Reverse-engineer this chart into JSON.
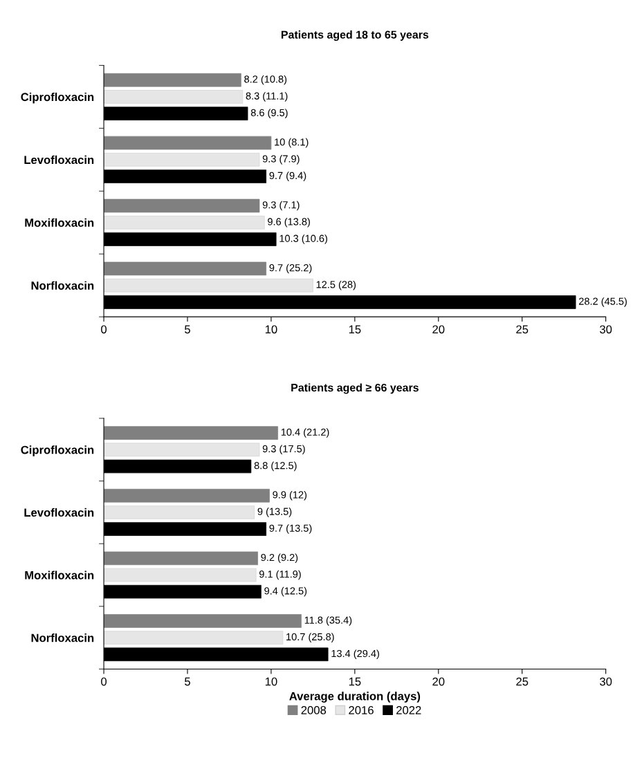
{
  "chart_data": [
    {
      "type": "bar",
      "orientation": "horizontal",
      "title": "Patients aged 18 to 65 years",
      "categories": [
        "Ciprofloxacin",
        "Levofloxacin",
        "Moxifloxacin",
        "Norfloxacin"
      ],
      "xlim": [
        0,
        30
      ],
      "xticks": [
        0,
        5,
        10,
        15,
        20,
        25,
        30
      ],
      "grid": false,
      "series": [
        {
          "color": "#808080",
          "values": [
            8.2,
            10,
            9.3,
            9.7
          ],
          "value_labels": [
            "8.2 (10.8)",
            "10 (8.1)",
            "9.3 (7.1)",
            "9.7 (25.2)"
          ]
        },
        {
          "color": "#e6e6e6",
          "values": [
            8.3,
            9.3,
            9.6,
            12.5
          ],
          "value_labels": [
            "8.3 (11.1)",
            "9.3 (7.9)",
            "9.6 (13.8)",
            "12.5 (28)"
          ]
        },
        {
          "color": "#000000",
          "values": [
            8.6,
            9.7,
            10.3,
            28.2
          ],
          "value_labels": [
            "8.6 (9.5)",
            "9.7 (9.4)",
            "10.3 (10.6)",
            "28.2 (45.5)"
          ]
        }
      ]
    },
    {
      "type": "bar",
      "orientation": "horizontal",
      "title": "Patients aged ≥ 66 years",
      "xlabel": "Average duration (days)",
      "categories": [
        "Ciprofloxacin",
        "Levofloxacin",
        "Moxifloxacin",
        "Norfloxacin"
      ],
      "xlim": [
        0,
        30
      ],
      "xticks": [
        0,
        5,
        10,
        15,
        20,
        25,
        30
      ],
      "grid": false,
      "legend": "bottom",
      "series": [
        {
          "name": "2008",
          "color": "#808080",
          "values": [
            10.4,
            9.9,
            9.2,
            11.8
          ],
          "value_labels": [
            "10.4 (21.2)",
            "9.9 (12)",
            "9.2 (9.2)",
            "11.8 (35.4)"
          ]
        },
        {
          "name": "2016",
          "color": "#e6e6e6",
          "values": [
            9.3,
            9,
            9.1,
            10.7
          ],
          "value_labels": [
            "9.3 (17.5)",
            "9 (13.5)",
            "9.1 (11.9)",
            "10.7 (25.8)"
          ]
        },
        {
          "name": "2022",
          "color": "#000000",
          "values": [
            8.8,
            9.7,
            9.4,
            13.4
          ],
          "value_labels": [
            "8.8 (12.5)",
            "9.7 (13.5)",
            "9.4 (12.5)",
            "13.4 (29.4)"
          ]
        }
      ]
    }
  ]
}
